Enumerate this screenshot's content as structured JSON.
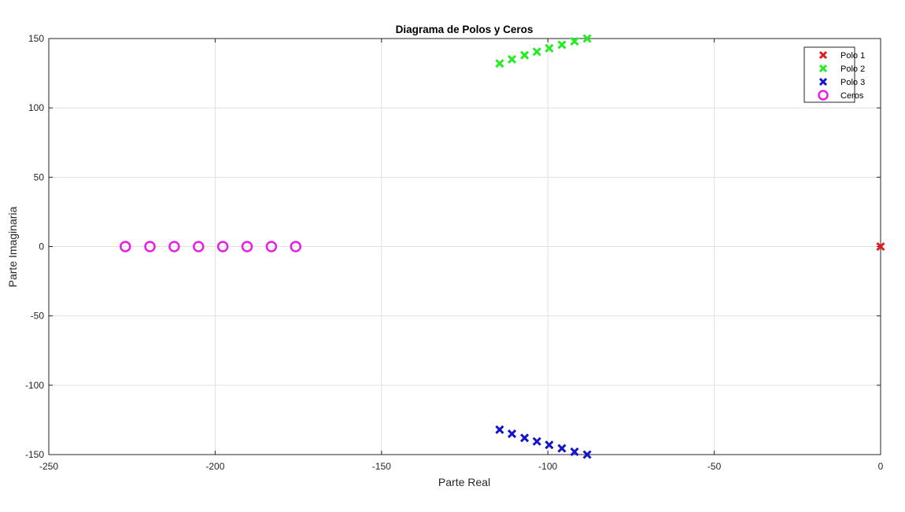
{
  "chart_data": {
    "type": "scatter",
    "title": "Diagrama de Polos y Ceros",
    "xlabel": "Parte Real",
    "ylabel": "Parte Imaginaria",
    "xlim": [
      -250,
      0
    ],
    "ylim": [
      -150,
      150
    ],
    "xticks": [
      -250,
      -200,
      -150,
      -100,
      -50,
      0
    ],
    "yticks": [
      -150,
      -100,
      -50,
      0,
      50,
      100,
      150
    ],
    "xtick_labels": [
      "-250",
      "-200",
      "-150",
      "-100",
      "-50",
      "0"
    ],
    "ytick_labels": [
      "-150",
      "-100",
      "-50",
      "0",
      "50",
      "100",
      "150"
    ],
    "grid": true,
    "legend_position": "top-right",
    "series": [
      {
        "name": "Polo 1",
        "marker": "x",
        "color": "#e41a1c",
        "points": [
          [
            0,
            0
          ]
        ]
      },
      {
        "name": "Polo 2",
        "marker": "x",
        "color": "#22ee22",
        "points": [
          [
            -114.5,
            132
          ],
          [
            -110.8,
            135
          ],
          [
            -107,
            138
          ],
          [
            -103.3,
            140.5
          ],
          [
            -99.6,
            143
          ],
          [
            -95.8,
            145.5
          ],
          [
            -92,
            148
          ],
          [
            -88.2,
            150
          ]
        ]
      },
      {
        "name": "Polo 3",
        "marker": "x",
        "color": "#1414c8",
        "points": [
          [
            -114.5,
            -132
          ],
          [
            -110.8,
            -135
          ],
          [
            -107,
            -138
          ],
          [
            -103.3,
            -140.5
          ],
          [
            -99.6,
            -143
          ],
          [
            -95.8,
            -145.5
          ],
          [
            -92,
            -148
          ],
          [
            -88.2,
            -150
          ]
        ]
      },
      {
        "name": "Ceros",
        "marker": "o",
        "color": "#e81ee8",
        "points": [
          [
            -227,
            0
          ],
          [
            -219.6,
            0
          ],
          [
            -212.3,
            0
          ],
          [
            -205,
            0
          ],
          [
            -197.7,
            0
          ],
          [
            -190.4,
            0
          ],
          [
            -183.1,
            0
          ],
          [
            -175.8,
            0
          ]
        ]
      }
    ]
  }
}
